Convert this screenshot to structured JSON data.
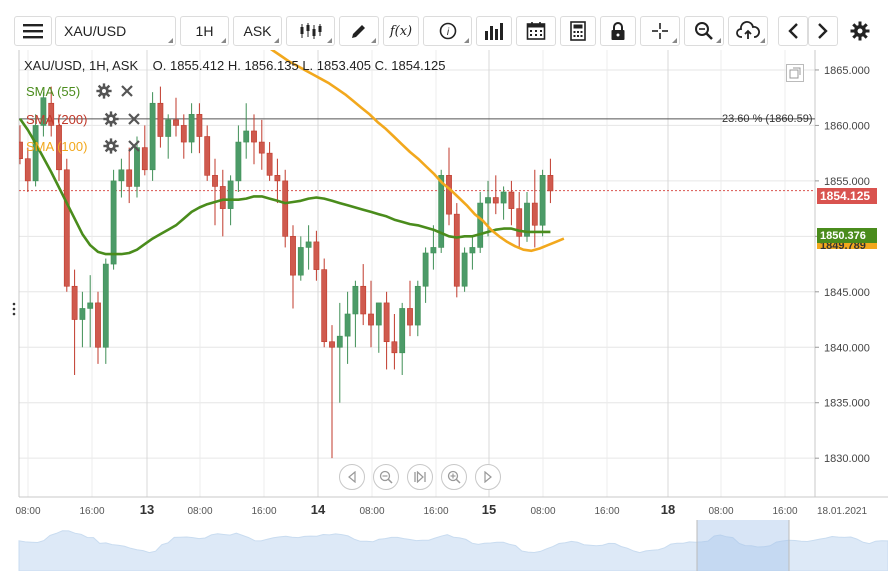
{
  "toolbar": {
    "symbol": "XAU/USD",
    "timeframe": "1H",
    "price_type": "ASK",
    "icons": [
      "menu-icon",
      "candlestick-icon",
      "pencil-icon",
      "function-icon",
      "info-icon",
      "volume-bars-icon",
      "calendar-icon",
      "calculator-icon",
      "lock-icon",
      "crosshair-icon",
      "zoom-icon",
      "cloud-upload-icon",
      "chevron-left-icon",
      "chevron-right-icon",
      "gear-icon"
    ],
    "function_label": "f(x)"
  },
  "ohlc": {
    "header": "XAU/USD, 1H, ASK",
    "open_label": "O.",
    "open": "1855.412",
    "high_label": "H.",
    "high": "1856.135",
    "low_label": "L.",
    "low": "1853.405",
    "close_label": "C.",
    "close": "1854.125"
  },
  "legend": [
    {
      "label": "SMA (55)",
      "color": "#4a8c1c"
    },
    {
      "label": "SMA (200)",
      "color": "#c0392b"
    },
    {
      "label": "SMA (100)",
      "color": "#f2a81d"
    }
  ],
  "fibonacci": {
    "label": "23.60 % (1860.59)",
    "level": 1860.59
  },
  "price_tags": {
    "current": {
      "label": "1854.125",
      "value": 1854.125,
      "color": "#d9534f"
    },
    "sma55": {
      "label": "1850.376",
      "value": 1850.376,
      "color": "#4a8c1c"
    },
    "sma100": {
      "label": "1849.789",
      "value": 1849.789,
      "color": "#f2a81d"
    }
  },
  "chart_data": {
    "type": "candlestick",
    "y_ticks": [
      "1865.000",
      "1860.000",
      "1855.000",
      "1850.000",
      "1845.000",
      "1840.000",
      "1835.000",
      "1830.000"
    ],
    "y_tick_values": [
      1865,
      1860,
      1855,
      1850,
      1845,
      1840,
      1835,
      1830
    ],
    "x_ticks": [
      "08:00",
      "16:00",
      "13",
      "08:00",
      "16:00",
      "14",
      "08:00",
      "16:00",
      "15",
      "08:00",
      "16:00",
      "18",
      "08:00",
      "16:00",
      "18.01.2021"
    ],
    "x_tick_bold": [
      false,
      false,
      true,
      false,
      false,
      true,
      false,
      false,
      true,
      false,
      false,
      true,
      false,
      false,
      false
    ],
    "ylim": [
      1826.5,
      1866.8
    ],
    "candles": [
      [
        1858.5,
        1860,
        1856.5,
        1857
      ],
      [
        1857,
        1858,
        1854,
        1855
      ],
      [
        1855,
        1861,
        1854.5,
        1860
      ],
      [
        1860,
        1863,
        1859,
        1862.5
      ],
      [
        1862,
        1863.5,
        1859,
        1860
      ],
      [
        1860,
        1861,
        1855,
        1856
      ],
      [
        1856,
        1857,
        1845,
        1845.5
      ],
      [
        1845.5,
        1847,
        1837.5,
        1842.5
      ],
      [
        1842.5,
        1845,
        1840,
        1843.5
      ],
      [
        1843.5,
        1846.5,
        1840,
        1844
      ],
      [
        1844,
        1845,
        1838.5,
        1840
      ],
      [
        1840,
        1848,
        1838.5,
        1847.5
      ],
      [
        1847.5,
        1856,
        1847,
        1855
      ],
      [
        1855,
        1857,
        1853.5,
        1856
      ],
      [
        1856,
        1858,
        1853,
        1854.5
      ],
      [
        1854.5,
        1859,
        1853.5,
        1858
      ],
      [
        1858,
        1860,
        1855.5,
        1856
      ],
      [
        1856,
        1863,
        1855,
        1862
      ],
      [
        1862,
        1863.5,
        1858,
        1859
      ],
      [
        1859,
        1861,
        1857,
        1860.5
      ],
      [
        1860.5,
        1862.5,
        1859,
        1860
      ],
      [
        1860,
        1861,
        1857,
        1858.5
      ],
      [
        1858.5,
        1862,
        1857.5,
        1861
      ],
      [
        1861,
        1862,
        1857.5,
        1859
      ],
      [
        1859,
        1860,
        1855,
        1855.5
      ],
      [
        1855.5,
        1857,
        1851,
        1854.5
      ],
      [
        1854.5,
        1856,
        1850,
        1852.5
      ],
      [
        1852.5,
        1855.5,
        1851,
        1855
      ],
      [
        1855,
        1860,
        1854,
        1858.5
      ],
      [
        1858.5,
        1862,
        1857,
        1859.5
      ],
      [
        1859.5,
        1861,
        1856.5,
        1858.5
      ],
      [
        1858.5,
        1860.5,
        1856,
        1857.5
      ],
      [
        1857.5,
        1858.5,
        1855,
        1855.5
      ],
      [
        1855.5,
        1857,
        1853,
        1855
      ],
      [
        1855,
        1856,
        1849,
        1850
      ],
      [
        1850,
        1851,
        1843.5,
        1846.5
      ],
      [
        1846.5,
        1850,
        1846,
        1849
      ],
      [
        1849,
        1851,
        1847,
        1849.5
      ],
      [
        1849.5,
        1850.5,
        1846,
        1847
      ],
      [
        1847,
        1848,
        1840,
        1840.5
      ],
      [
        1840.5,
        1842,
        1830,
        1840
      ],
      [
        1840,
        1844,
        1835,
        1841
      ],
      [
        1841,
        1845,
        1838.5,
        1843
      ],
      [
        1843,
        1846,
        1840,
        1845.5
      ],
      [
        1845.5,
        1847.5,
        1842,
        1843
      ],
      [
        1843,
        1846,
        1840,
        1842
      ],
      [
        1842,
        1844,
        1839.5,
        1844
      ],
      [
        1844,
        1845,
        1838,
        1840.5
      ],
      [
        1840.5,
        1843,
        1838,
        1839.5
      ],
      [
        1839.5,
        1844,
        1837.5,
        1843.5
      ],
      [
        1843.5,
        1846,
        1841,
        1842
      ],
      [
        1842,
        1846,
        1841,
        1845.5
      ],
      [
        1845.5,
        1849,
        1844,
        1848.5
      ],
      [
        1848.5,
        1851,
        1847,
        1849
      ],
      [
        1849,
        1856,
        1848.5,
        1855.5
      ],
      [
        1855.5,
        1858,
        1851,
        1852
      ],
      [
        1852,
        1853,
        1844.5,
        1845.5
      ],
      [
        1845.5,
        1849,
        1845,
        1848.5
      ],
      [
        1848.5,
        1850,
        1847,
        1849
      ],
      [
        1849,
        1854,
        1848.5,
        1853
      ],
      [
        1853,
        1855,
        1850,
        1853.5
      ],
      [
        1853.5,
        1855.5,
        1852,
        1853
      ],
      [
        1853,
        1854.5,
        1851.5,
        1854
      ],
      [
        1854,
        1855,
        1851,
        1852.5
      ],
      [
        1852.5,
        1854,
        1849,
        1850
      ],
      [
        1850,
        1854,
        1849.5,
        1853
      ],
      [
        1853,
        1856,
        1849,
        1851
      ],
      [
        1851,
        1856,
        1850,
        1855.5
      ],
      [
        1855.5,
        1857,
        1853,
        1854.1
      ]
    ],
    "series": [
      {
        "name": "SMA (55)",
        "color": "#4a8c1c",
        "values": [
          1860.6,
          1859.6,
          1858.4,
          1857.1,
          1855.8,
          1854.4,
          1853,
          1851.6,
          1850.2,
          1849.2,
          1848.6,
          1848.4,
          1848.4,
          1848.4,
          1848.5,
          1848.8,
          1849.3,
          1849.8,
          1850.2,
          1850.6,
          1851,
          1851.6,
          1852.2,
          1852.6,
          1852.9,
          1853.1,
          1853.3,
          1853.3,
          1853.3,
          1853.4,
          1853.6,
          1853.6,
          1853.4,
          1853.2,
          1853,
          1853.1,
          1853.2,
          1853.4,
          1853.5,
          1853.4,
          1853.2,
          1853,
          1852.8,
          1852.6,
          1852.4,
          1852.2,
          1852,
          1851.8,
          1851.5,
          1851.3,
          1851.1,
          1851,
          1850.8,
          1850.6,
          1850.3,
          1850,
          1849.9,
          1850,
          1850,
          1850.2,
          1850.4,
          1850.6,
          1850.7,
          1850.7,
          1850.5,
          1850.4,
          1850.4,
          1850.4,
          1850.4
        ]
      },
      {
        "name": "SMA (100)",
        "color": "#f2a81d",
        "values": [
          1868.5,
          1868,
          1867.3,
          1866.8,
          1866.3,
          1865.8,
          1865.4,
          1865,
          1864.6,
          1864.2,
          1863.8,
          1863.3,
          1862.8,
          1862.2,
          1861.6,
          1861,
          1860.3,
          1859.7,
          1859,
          1858.3,
          1857.6,
          1857,
          1856.3,
          1855.6,
          1854.8,
          1854.2,
          1853.5,
          1852.8,
          1852,
          1851.4,
          1850.6,
          1850,
          1849.5,
          1849.1,
          1848.8,
          1848.7,
          1848.9,
          1849.2,
          1849.5,
          1849.8
        ]
      }
    ]
  }
}
